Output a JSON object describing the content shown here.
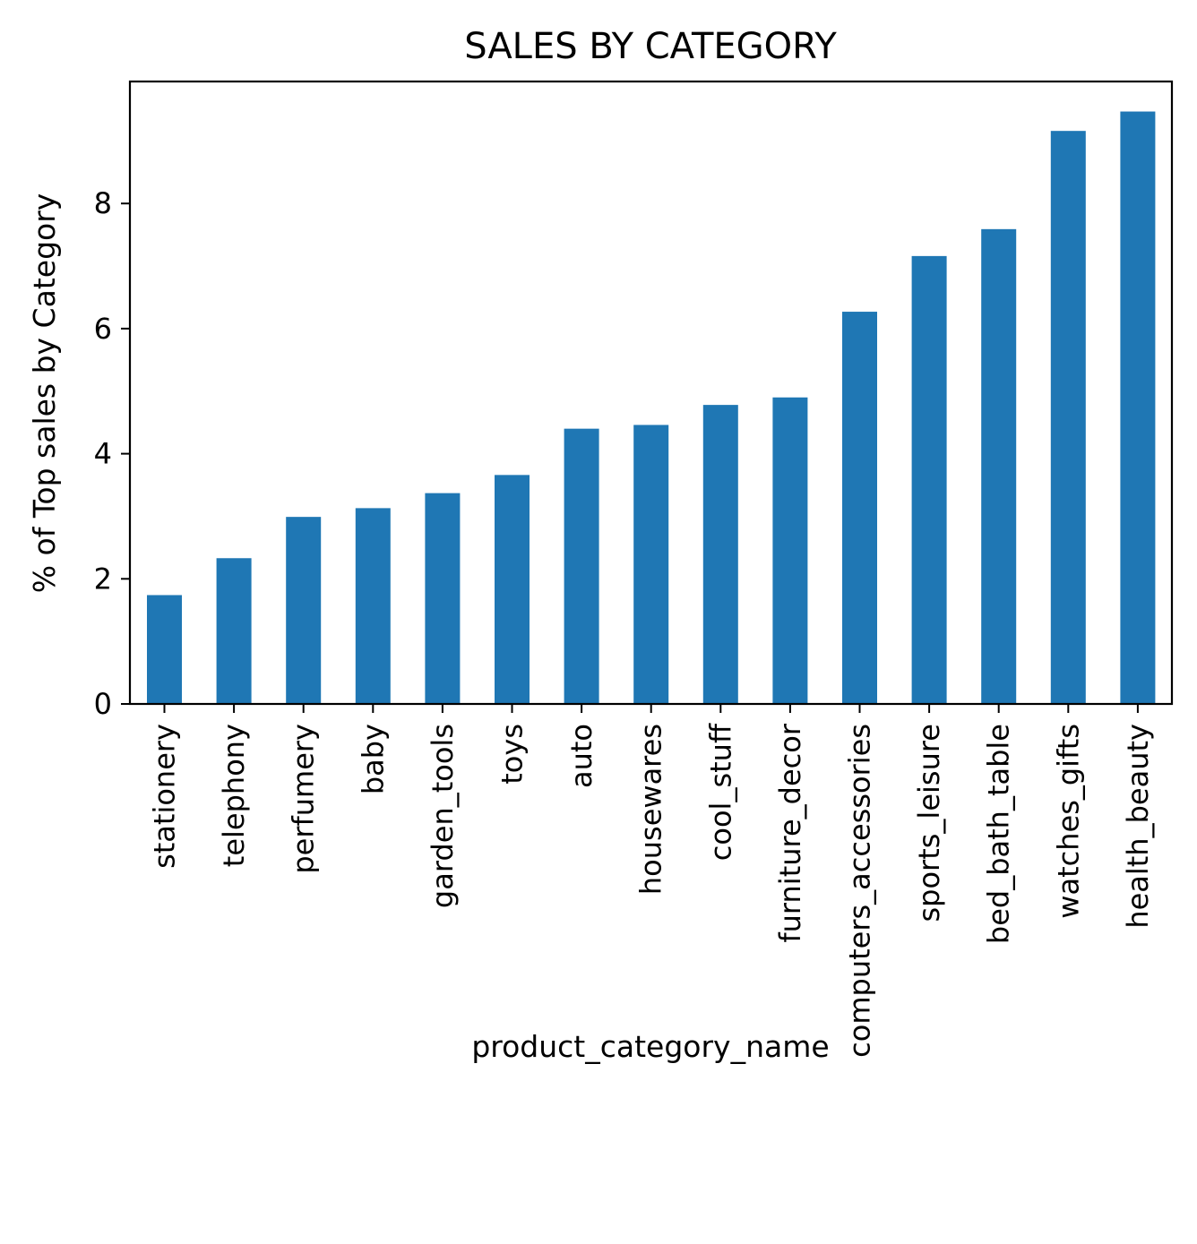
{
  "chart_data": {
    "type": "bar",
    "title": "SALES BY CATEGORY",
    "xlabel": "product_category_name",
    "ylabel": "% of Top sales by Category",
    "categories": [
      "stationery",
      "telephony",
      "perfumery",
      "baby",
      "garden_tools",
      "toys",
      "auto",
      "housewares",
      "cool_stuff",
      "furniture_decor",
      "computers_accessories",
      "sports_leisure",
      "bed_bath_table",
      "watches_gifts",
      "health_beauty"
    ],
    "values": [
      1.74,
      2.33,
      2.99,
      3.13,
      3.37,
      3.66,
      4.4,
      4.46,
      4.78,
      4.9,
      6.27,
      7.16,
      7.59,
      9.16,
      9.47
    ],
    "ylim": [
      0,
      9.95
    ],
    "yticks": [
      0,
      2,
      4,
      6,
      8
    ],
    "grid": false,
    "legend": "none",
    "bar_color": "#1f77b4"
  }
}
